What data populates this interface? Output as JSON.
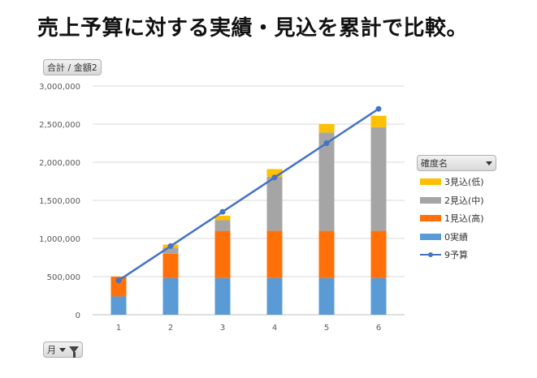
{
  "title": "売上予算に対する実績・見込を累計で比較。",
  "value_field": "合計 / 金額2",
  "legend_field": "確度名",
  "axis_field": "月",
  "chart_data": {
    "type": "bar",
    "stacked": true,
    "categories": [
      "1",
      "2",
      "3",
      "4",
      "5",
      "6"
    ],
    "ylim": [
      0,
      3000000
    ],
    "yticks": [
      "0",
      "500,000",
      "1,000,000",
      "1,500,000",
      "2,000,000",
      "2,500,000",
      "3,000,000"
    ],
    "grid": true,
    "legend_position": "right",
    "series": [
      {
        "name": "0実績",
        "color": "#5b9bd5",
        "kind": "bar",
        "values": [
          240000,
          480000,
          480000,
          480000,
          480000,
          480000
        ]
      },
      {
        "name": "1見込(高)",
        "color": "#ff7009",
        "kind": "bar",
        "values": [
          260000,
          320000,
          620000,
          620000,
          620000,
          620000
        ]
      },
      {
        "name": "2見込(中)",
        "color": "#a5a5a5",
        "kind": "bar",
        "values": [
          0,
          80000,
          140000,
          710000,
          1290000,
          1360000
        ]
      },
      {
        "name": "3見込(低)",
        "color": "#ffc000",
        "kind": "bar",
        "values": [
          0,
          40000,
          60000,
          100000,
          110000,
          150000
        ]
      },
      {
        "name": "9予算",
        "color": "#4472c4",
        "kind": "line",
        "values": [
          450000,
          900000,
          1350000,
          1800000,
          2250000,
          2700000
        ]
      }
    ],
    "legend_order": [
      "3見込(低)",
      "2見込(中)",
      "1見込(高)",
      "0実績",
      "9予算"
    ]
  }
}
